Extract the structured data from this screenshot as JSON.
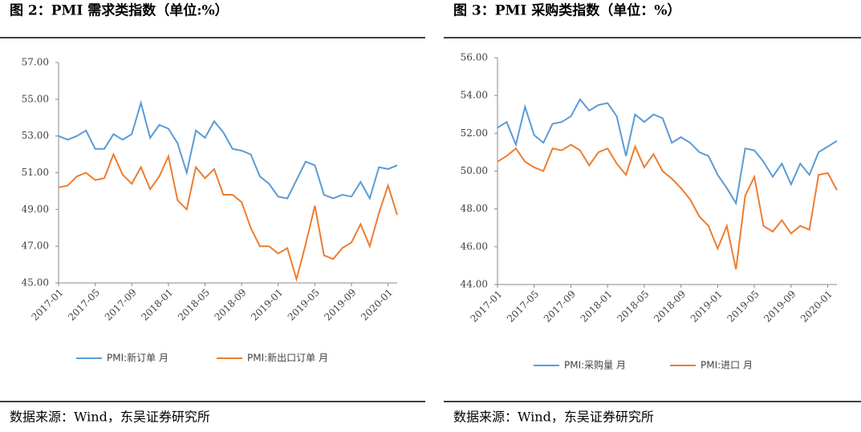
{
  "chart_data": [
    {
      "type": "line",
      "title": "图 2：PMI 需求类指数（单位:%）",
      "source": "数据来源：Wind，东吴证券研究所",
      "categories": [
        "2017-01",
        null,
        null,
        null,
        "2017-05",
        null,
        null,
        null,
        "2017-09",
        null,
        null,
        null,
        "2018-01",
        null,
        null,
        null,
        "2018-05",
        null,
        null,
        null,
        "2018-09",
        null,
        null,
        null,
        "2019-01",
        null,
        null,
        null,
        "2019-05",
        null,
        null,
        null,
        "2019-09",
        null,
        null,
        null,
        "2020-01",
        null
      ],
      "series": [
        {
          "name": "PMI:新订单 月",
          "color": "#5b9bd5",
          "values": [
            53.0,
            52.8,
            53.0,
            53.3,
            52.3,
            52.3,
            53.1,
            52.8,
            53.1,
            54.8,
            52.9,
            53.6,
            53.4,
            52.6,
            51.0,
            53.3,
            52.9,
            53.8,
            53.2,
            52.3,
            52.2,
            52.0,
            50.8,
            50.4,
            49.7,
            49.6,
            50.6,
            51.6,
            51.4,
            49.8,
            49.6,
            49.8,
            49.7,
            50.5,
            49.6,
            51.3,
            51.2,
            51.4
          ]
        },
        {
          "name": "PMI:新出口订单 月",
          "color": "#ed7d31",
          "values": [
            50.2,
            50.3,
            50.8,
            51.0,
            50.6,
            50.7,
            52.0,
            50.9,
            50.4,
            51.3,
            50.1,
            50.8,
            51.9,
            49.5,
            49.0,
            51.3,
            50.7,
            51.2,
            49.8,
            49.8,
            49.4,
            48.0,
            47.0,
            47.0,
            46.6,
            46.9,
            45.2,
            47.1,
            49.2,
            46.5,
            46.3,
            46.9,
            47.2,
            48.2,
            47.0,
            48.8,
            50.3,
            48.7
          ]
        }
      ],
      "ylim": [
        45,
        57
      ],
      "yticks": [
        {
          "value": 45,
          "label": "45.00"
        },
        {
          "value": 47,
          "label": "47.00"
        },
        {
          "value": 49,
          "label": "49.00"
        },
        {
          "value": 51,
          "label": "51.00"
        },
        {
          "value": 53,
          "label": "53.00"
        },
        {
          "value": 55,
          "label": "55.00"
        },
        {
          "value": 57,
          "label": "57.00"
        }
      ],
      "legend": "bottom"
    },
    {
      "type": "line",
      "title": "图 3：PMI 采购类指数（单位：%）",
      "source": "数据来源：Wind，东吴证券研究所",
      "categories": [
        "2017-01",
        null,
        null,
        null,
        "2017-05",
        null,
        null,
        null,
        "2017-09",
        null,
        null,
        null,
        "2018-01",
        null,
        null,
        null,
        "2018-05",
        null,
        null,
        null,
        "2018-09",
        null,
        null,
        null,
        "2019-01",
        null,
        null,
        null,
        "2019-05",
        null,
        null,
        null,
        "2019-09",
        null,
        null,
        null,
        "2020-01",
        null
      ],
      "series": [
        {
          "name": "PMI:采购量 月",
          "color": "#5b9bd5",
          "values": [
            52.3,
            52.6,
            51.4,
            53.4,
            51.9,
            51.5,
            52.5,
            52.6,
            52.9,
            53.8,
            53.2,
            53.5,
            53.6,
            52.9,
            50.8,
            53.0,
            52.6,
            53.0,
            52.8,
            51.5,
            51.8,
            51.5,
            51.0,
            50.8,
            49.8,
            49.1,
            48.3,
            51.2,
            51.1,
            50.5,
            49.7,
            50.4,
            49.3,
            50.4,
            49.8,
            51.0,
            51.3,
            51.6
          ]
        },
        {
          "name": "PMI:进口 月",
          "color": "#ed7d31",
          "values": [
            50.5,
            50.8,
            51.2,
            50.5,
            50.2,
            50.0,
            51.2,
            51.1,
            51.4,
            51.1,
            50.3,
            51.0,
            51.2,
            50.4,
            49.8,
            51.3,
            50.2,
            50.9,
            50.0,
            49.6,
            49.1,
            48.5,
            47.6,
            47.1,
            45.9,
            47.1,
            44.8,
            48.7,
            49.7,
            47.1,
            46.8,
            47.4,
            46.7,
            47.1,
            46.9,
            49.8,
            49.9,
            49.0
          ]
        }
      ],
      "ylim": [
        44,
        56
      ],
      "yticks": [
        {
          "value": 44,
          "label": "44.00"
        },
        {
          "value": 46,
          "label": "46.00"
        },
        {
          "value": 48,
          "label": "48.00"
        },
        {
          "value": 50,
          "label": "50.00"
        },
        {
          "value": 52,
          "label": "52.00"
        },
        {
          "value": 54,
          "label": "54.00"
        },
        {
          "value": 56,
          "label": "56.00"
        }
      ],
      "legend": "bottom"
    }
  ]
}
